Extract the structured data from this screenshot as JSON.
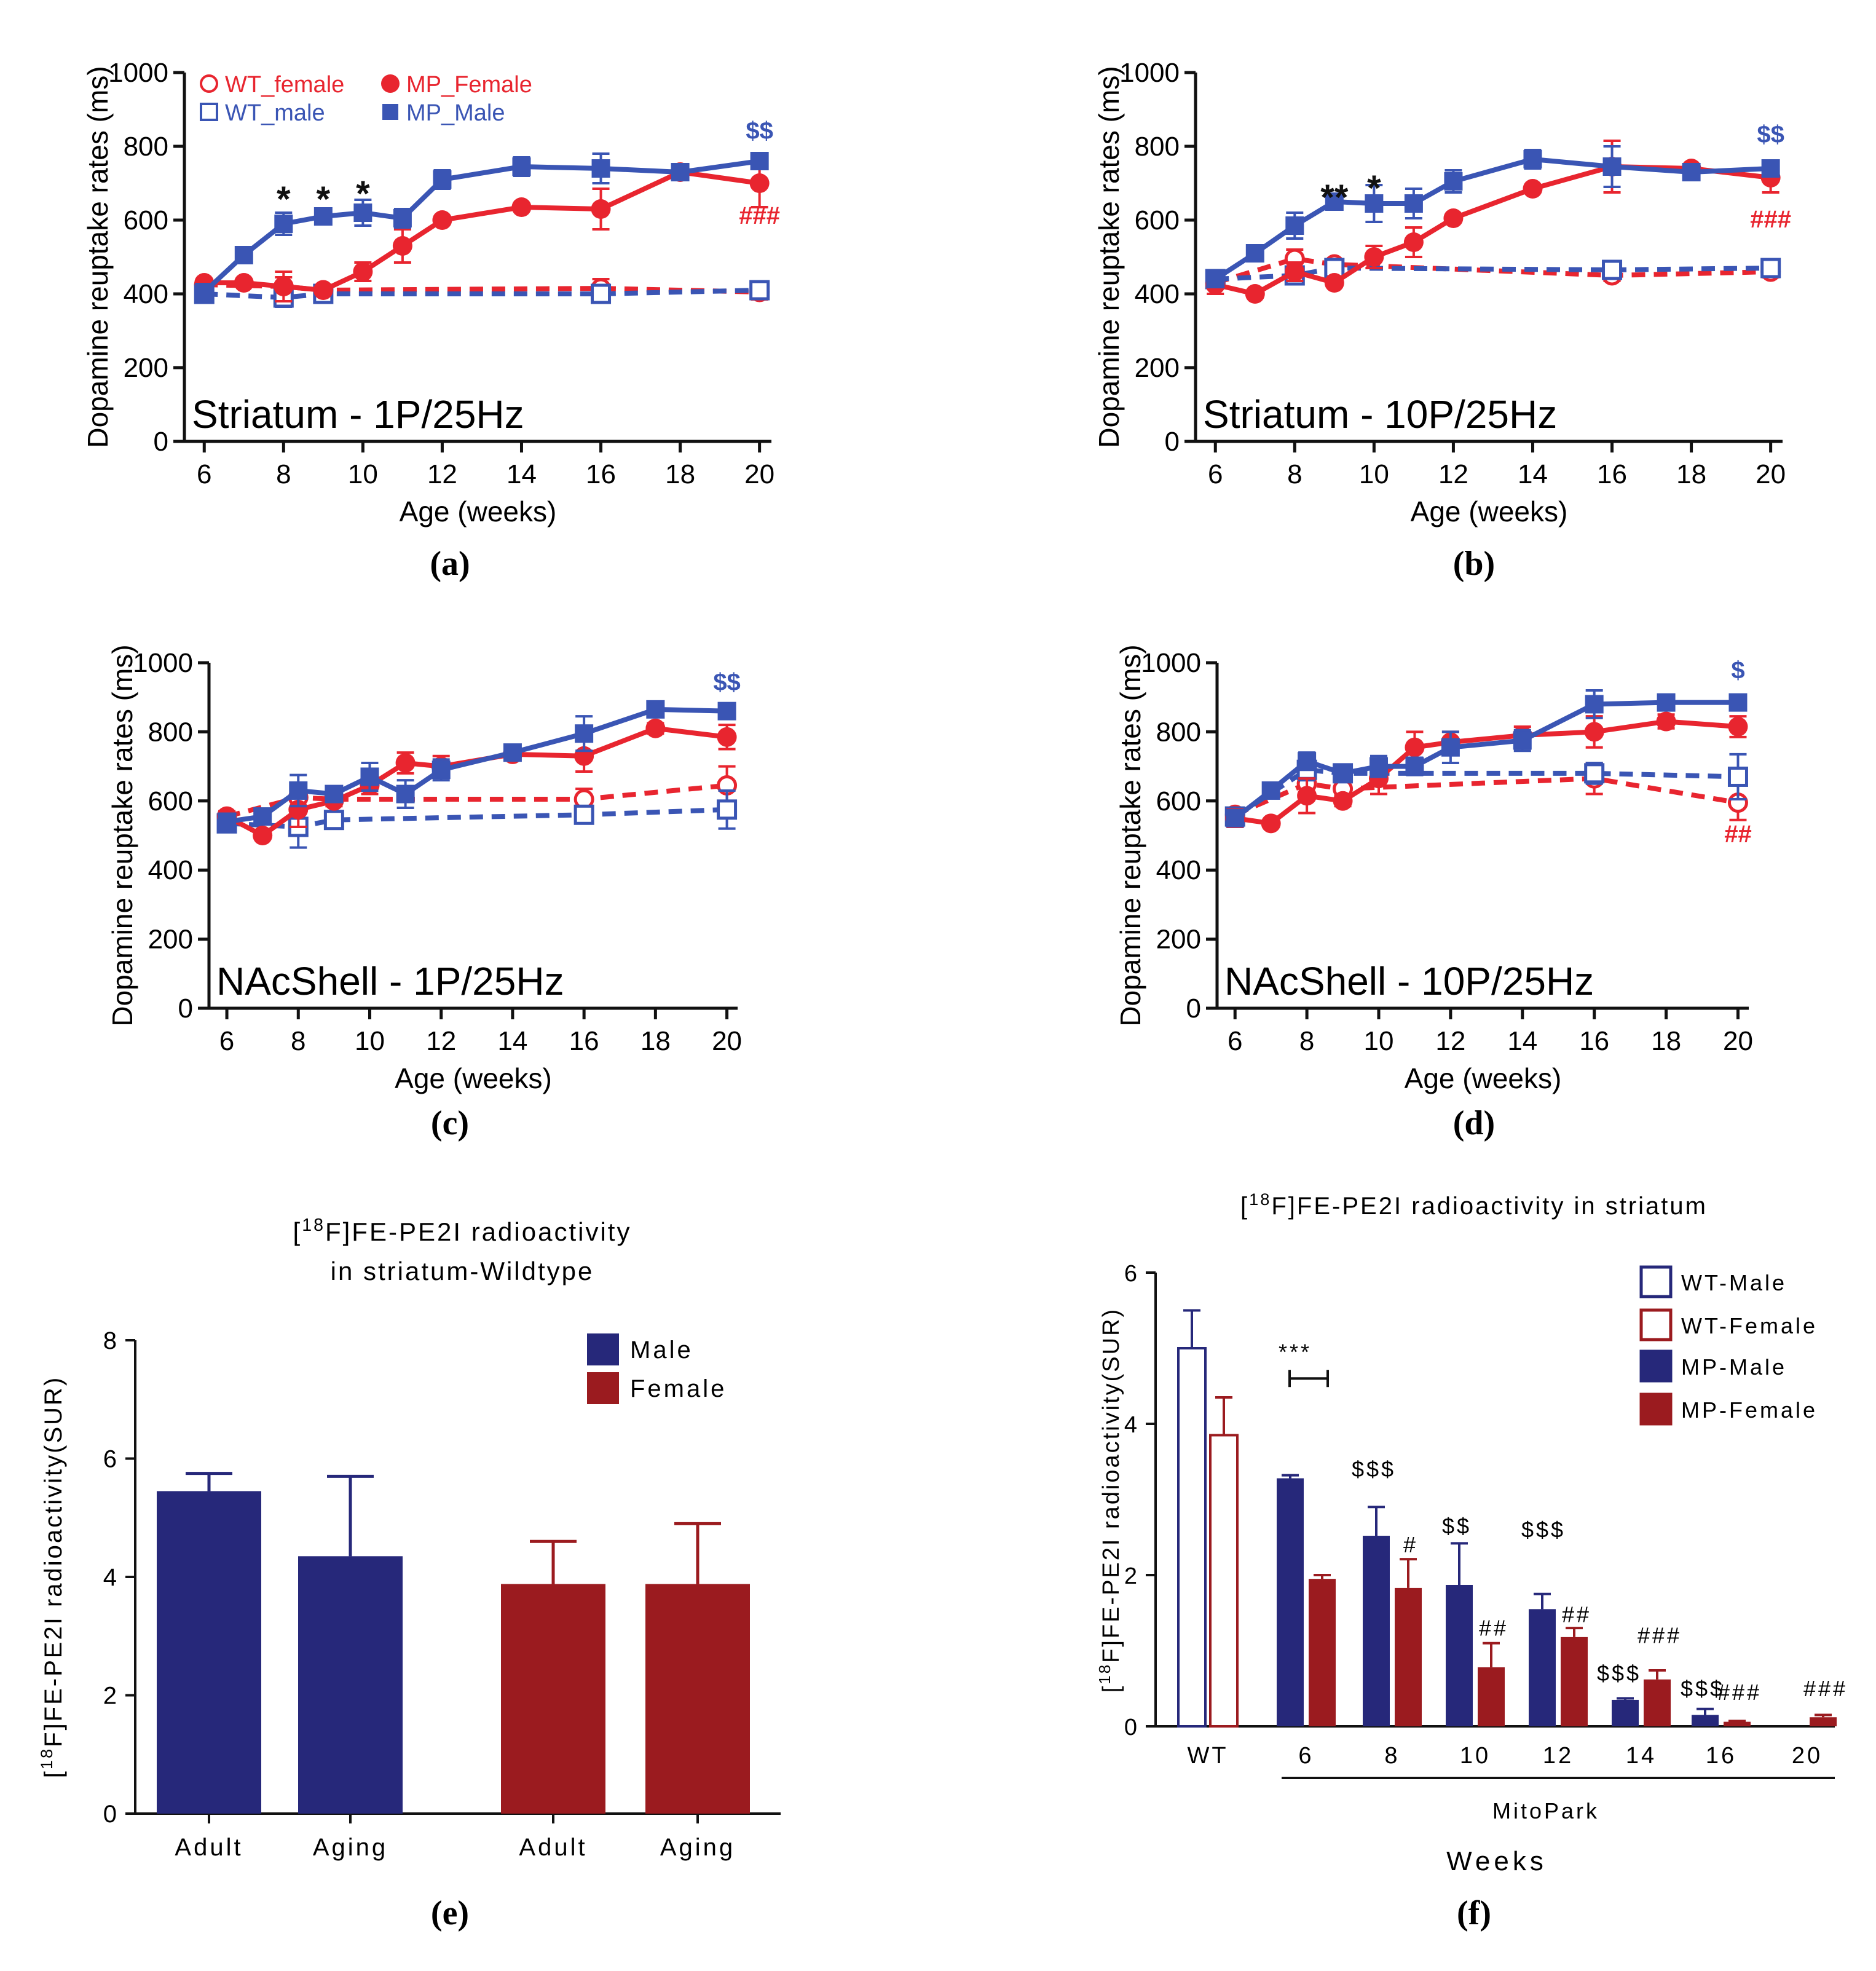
{
  "colors": {
    "mp_female": "#e8252f",
    "wt_female": "#e8252f",
    "mp_male": "#3a55b4",
    "wt_male": "#3a55b4",
    "bar_male": "#26287a",
    "bar_female": "#9b1b1f",
    "axis": "#111111"
  },
  "chart_data": [
    {
      "panel": "a",
      "type": "line",
      "caption": "(a)",
      "annotation": "Striatum - 1P/25Hz",
      "xlabel": "Age (weeks)",
      "ylabel": "Dopamine reuptake rates (ms)",
      "xlim": [
        5.5,
        20.3
      ],
      "ylim": [
        0,
        1000
      ],
      "xticks": [
        6,
        8,
        10,
        12,
        14,
        16,
        18,
        20
      ],
      "yticks": [
        0,
        200,
        400,
        600,
        800,
        1000
      ],
      "legend": [
        "WT_female",
        "MP_Female",
        "WT_male",
        "MP_Male"
      ],
      "series": [
        {
          "name": "WT_female",
          "key": "wt_female",
          "style": "dashed",
          "marker": "open-circle",
          "x": [
            6,
            8,
            9,
            16,
            20
          ],
          "y": [
            425,
            420,
            410,
            415,
            405
          ],
          "err": [
            15,
            25,
            10,
            25,
            20
          ]
        },
        {
          "name": "WT_male",
          "key": "wt_male",
          "style": "dashed",
          "marker": "open-square",
          "x": [
            6,
            8,
            9,
            16,
            20
          ],
          "y": [
            400,
            390,
            400,
            400,
            410
          ],
          "err": [
            15,
            25,
            10,
            20,
            20
          ]
        },
        {
          "name": "MP_Female",
          "key": "mp_female",
          "style": "solid",
          "marker": "filled-circle",
          "x": [
            6,
            7,
            8,
            9,
            10,
            11,
            12,
            14,
            16,
            18,
            20
          ],
          "y": [
            430,
            430,
            420,
            410,
            460,
            530,
            600,
            635,
            630,
            730,
            700
          ],
          "err": [
            10,
            10,
            40,
            10,
            25,
            45,
            10,
            10,
            55,
            10,
            65
          ]
        },
        {
          "name": "MP_Male",
          "key": "mp_male",
          "style": "solid",
          "marker": "filled-square",
          "x": [
            6,
            7,
            8,
            9,
            10,
            11,
            12,
            14,
            16,
            18,
            20
          ],
          "y": [
            405,
            505,
            590,
            610,
            620,
            605,
            710,
            745,
            740,
            730,
            760
          ],
          "err": [
            10,
            15,
            30,
            10,
            35,
            25,
            25,
            25,
            40,
            10,
            20
          ]
        }
      ],
      "marks": [
        {
          "text": "*",
          "x": 8,
          "y": 660,
          "color": "axis"
        },
        {
          "text": "*",
          "x": 9,
          "y": 660,
          "color": "axis"
        },
        {
          "text": "*",
          "x": 10,
          "y": 675,
          "color": "axis"
        },
        {
          "text": "$$",
          "x": 20,
          "y": 820,
          "color": "mp_male"
        },
        {
          "text": "###",
          "x": 20,
          "y": 590,
          "color": "mp_female"
        }
      ]
    },
    {
      "panel": "b",
      "type": "line",
      "caption": "(b)",
      "annotation": "Striatum - 10P/25Hz",
      "xlabel": "Age (weeks)",
      "ylabel": "Dopamine reuptake rates (ms)",
      "xlim": [
        5.5,
        20.3
      ],
      "ylim": [
        0,
        1000
      ],
      "xticks": [
        6,
        8,
        10,
        12,
        14,
        16,
        18,
        20
      ],
      "yticks": [
        0,
        200,
        400,
        600,
        800,
        1000
      ],
      "series": [
        {
          "name": "WT_female",
          "key": "wt_female",
          "style": "dashed",
          "marker": "open-circle",
          "x": [
            6,
            8,
            9,
            16,
            20
          ],
          "y": [
            430,
            495,
            480,
            450,
            460
          ],
          "err": [
            15,
            25,
            10,
            15,
            15
          ]
        },
        {
          "name": "WT_male",
          "key": "wt_male",
          "style": "dashed",
          "marker": "open-square",
          "x": [
            6,
            8,
            9,
            16,
            20
          ],
          "y": [
            440,
            450,
            470,
            465,
            470
          ],
          "err": [
            15,
            20,
            10,
            15,
            15
          ]
        },
        {
          "name": "MP_Female",
          "key": "mp_female",
          "style": "solid",
          "marker": "filled-circle",
          "x": [
            6,
            7,
            8,
            9,
            10,
            11,
            12,
            14,
            16,
            18,
            20
          ],
          "y": [
            425,
            400,
            460,
            430,
            500,
            540,
            605,
            685,
            745,
            740,
            715
          ],
          "err": [
            25,
            10,
            25,
            10,
            30,
            40,
            10,
            10,
            70,
            10,
            40
          ]
        },
        {
          "name": "MP_Male",
          "key": "mp_male",
          "style": "solid",
          "marker": "filled-square",
          "x": [
            6,
            7,
            8,
            9,
            10,
            11,
            12,
            14,
            16,
            18,
            20
          ],
          "y": [
            440,
            510,
            585,
            650,
            645,
            645,
            705,
            765,
            745,
            730,
            740
          ],
          "err": [
            10,
            20,
            35,
            10,
            50,
            40,
            30,
            25,
            55,
            10,
            20
          ]
        }
      ],
      "marks": [
        {
          "text": "**",
          "x": 9,
          "y": 665,
          "color": "axis"
        },
        {
          "text": "*",
          "x": 10,
          "y": 690,
          "color": "axis"
        },
        {
          "text": "$$",
          "x": 20,
          "y": 810,
          "color": "mp_male"
        },
        {
          "text": "###",
          "x": 20,
          "y": 580,
          "color": "mp_female"
        }
      ]
    },
    {
      "panel": "c",
      "type": "line",
      "caption": "(c)",
      "annotation": "NAcShell - 1P/25Hz",
      "xlabel": "Age (weeks)",
      "ylabel": "Dopamine reuptake rates (ms)",
      "xlim": [
        5.5,
        20.3
      ],
      "ylim": [
        0,
        1000
      ],
      "xticks": [
        6,
        8,
        10,
        12,
        14,
        16,
        18,
        20
      ],
      "yticks": [
        0,
        200,
        400,
        600,
        800,
        1000
      ],
      "series": [
        {
          "name": "WT_female",
          "key": "wt_female",
          "style": "dashed",
          "marker": "open-circle",
          "x": [
            6,
            8,
            9,
            16,
            20
          ],
          "y": [
            555,
            610,
            605,
            605,
            645
          ],
          "err": [
            15,
            35,
            15,
            30,
            55
          ]
        },
        {
          "name": "WT_male",
          "key": "wt_male",
          "style": "dashed",
          "marker": "open-square",
          "x": [
            6,
            8,
            9,
            16,
            20
          ],
          "y": [
            535,
            525,
            545,
            560,
            575
          ],
          "err": [
            15,
            60,
            15,
            20,
            55
          ]
        },
        {
          "name": "MP_Female",
          "key": "mp_female",
          "style": "solid",
          "marker": "filled-circle",
          "x": [
            6,
            7,
            8,
            9,
            10,
            11,
            12,
            14,
            16,
            18,
            20
          ],
          "y": [
            555,
            500,
            575,
            600,
            645,
            710,
            700,
            735,
            730,
            810,
            785
          ],
          "err": [
            15,
            10,
            50,
            15,
            25,
            30,
            30,
            15,
            45,
            15,
            35
          ]
        },
        {
          "name": "MP_Male",
          "key": "mp_male",
          "style": "solid",
          "marker": "filled-square",
          "x": [
            6,
            7,
            8,
            9,
            10,
            11,
            12,
            14,
            16,
            18,
            20
          ],
          "y": [
            540,
            555,
            630,
            620,
            670,
            620,
            690,
            740,
            795,
            865,
            860
          ],
          "err": [
            10,
            10,
            45,
            15,
            40,
            40,
            30,
            20,
            50,
            10,
            15
          ]
        }
      ],
      "marks": [
        {
          "text": "$$",
          "x": 20,
          "y": 920,
          "color": "mp_male"
        }
      ]
    },
    {
      "panel": "d",
      "type": "line",
      "caption": "(d)",
      "annotation": "NAcShell - 10P/25Hz",
      "xlabel": "Age (weeks)",
      "ylabel": "Dopamine reuptake rates (ms)",
      "xlim": [
        5.5,
        20.3
      ],
      "ylim": [
        0,
        1000
      ],
      "xticks": [
        6,
        8,
        10,
        12,
        14,
        16,
        18,
        20
      ],
      "yticks": [
        0,
        200,
        400,
        600,
        800,
        1000
      ],
      "series": [
        {
          "name": "WT_female",
          "key": "wt_female",
          "style": "dashed",
          "marker": "open-circle",
          "x": [
            6,
            8,
            9,
            16,
            20
          ],
          "y": [
            560,
            650,
            635,
            665,
            595
          ],
          "err": [
            15,
            40,
            20,
            45,
            50
          ]
        },
        {
          "name": "WT_male",
          "key": "wt_male",
          "style": "dashed",
          "marker": "open-square",
          "x": [
            6,
            8,
            9,
            16,
            20
          ],
          "y": [
            555,
            690,
            680,
            680,
            670
          ],
          "err": [
            15,
            30,
            25,
            30,
            65
          ]
        },
        {
          "name": "MP_Female",
          "key": "mp_female",
          "style": "solid",
          "marker": "filled-circle",
          "x": [
            6,
            7,
            8,
            9,
            10,
            11,
            12,
            14,
            16,
            18,
            20
          ],
          "y": [
            550,
            535,
            615,
            600,
            665,
            755,
            770,
            790,
            800,
            830,
            815
          ],
          "err": [
            25,
            10,
            50,
            15,
            45,
            45,
            30,
            25,
            45,
            20,
            30
          ]
        },
        {
          "name": "MP_Male",
          "key": "mp_male",
          "style": "solid",
          "marker": "filled-square",
          "x": [
            6,
            7,
            8,
            9,
            10,
            11,
            12,
            14,
            16,
            18,
            20
          ],
          "y": [
            550,
            630,
            715,
            680,
            700,
            700,
            755,
            775,
            880,
            885,
            885
          ],
          "err": [
            15,
            10,
            25,
            20,
            30,
            25,
            45,
            30,
            40,
            20,
            20
          ]
        }
      ],
      "marks": [
        {
          "text": "$",
          "x": 20,
          "y": 955,
          "color": "mp_male"
        },
        {
          "text": "##",
          "x": 20,
          "y": 480,
          "color": "mp_female"
        }
      ]
    },
    {
      "panel": "e",
      "type": "bar",
      "caption": "(e)",
      "title": [
        "[18F]FE-PE2I radioactivity",
        "in striatum-Wildtype"
      ],
      "ylabel": "[18F]FE-PE2I radioactivity(SUR)",
      "ylim": [
        0,
        8
      ],
      "yticks": [
        0,
        2,
        4,
        6,
        8
      ],
      "legend": [
        "Male",
        "Female"
      ],
      "bars": [
        {
          "label": "Adult",
          "group": "Male",
          "value": 5.45,
          "err": 0.3
        },
        {
          "label": "Aging",
          "group": "Male",
          "value": 4.35,
          "err": 1.35
        },
        {
          "label": "Adult",
          "group": "Female",
          "value": 3.88,
          "err": 0.72
        },
        {
          "label": "Aging",
          "group": "Female",
          "value": 3.88,
          "err": 1.02
        }
      ]
    },
    {
      "panel": "f",
      "type": "bar",
      "caption": "(f)",
      "title": "[18F]FE-PE2I radioactivity in striatum",
      "ylabel": "[18F]FE-PE2I radioactivity(SUR)",
      "xlabel": "Weeks",
      "group_label": "MitoPark",
      "ylim": [
        0,
        6
      ],
      "yticks": [
        0,
        2,
        4,
        6
      ],
      "legend": [
        "WT-Male",
        "WT-Female",
        "MP-Male",
        "MP-Female"
      ],
      "categories": [
        "WT",
        "6",
        "8",
        "10",
        "12",
        "14",
        "16",
        "20"
      ],
      "bars": [
        {
          "cat": "WT",
          "group": "WT-Male",
          "value": 5.0,
          "err": 0.5
        },
        {
          "cat": "WT",
          "group": "WT-Female",
          "value": 3.85,
          "err": 0.5
        },
        {
          "cat": "6",
          "group": "MP-Male",
          "value": 3.28,
          "err": 0.04
        },
        {
          "cat": "6",
          "group": "MP-Female",
          "value": 1.95,
          "err": 0.05
        },
        {
          "cat": "8",
          "group": "MP-Male",
          "value": 2.52,
          "err": 0.38
        },
        {
          "cat": "8",
          "group": "MP-Female",
          "value": 1.83,
          "err": 0.38
        },
        {
          "cat": "10",
          "group": "MP-Male",
          "value": 1.87,
          "err": 0.55
        },
        {
          "cat": "10",
          "group": "MP-Female",
          "value": 0.78,
          "err": 0.32
        },
        {
          "cat": "12",
          "group": "MP-Male",
          "value": 1.55,
          "err": 0.2
        },
        {
          "cat": "12",
          "group": "MP-Female",
          "value": 1.18,
          "err": 0.12
        },
        {
          "cat": "14",
          "group": "MP-Male",
          "value": 0.35,
          "err": 0.02
        },
        {
          "cat": "14",
          "group": "MP-Female",
          "value": 0.62,
          "err": 0.12
        },
        {
          "cat": "16",
          "group": "MP-Male",
          "value": 0.15,
          "err": 0.08
        },
        {
          "cat": "16",
          "group": "MP-Female",
          "value": 0.06,
          "err": 0.01
        },
        {
          "cat": "20",
          "group": "MP-Female",
          "value": 0.12,
          "err": 0.03
        }
      ],
      "marks": [
        {
          "text": "***",
          "cat": "6",
          "slot": -0.3,
          "y": 4.85
        },
        {
          "text": "$$$",
          "cat": "8",
          "slot": -0.5,
          "y": 3.3
        },
        {
          "text": "#",
          "cat": "8",
          "slot": 0.5,
          "y": 2.3
        },
        {
          "text": "$$",
          "cat": "10",
          "slot": -0.5,
          "y": 2.55
        },
        {
          "text": "##",
          "cat": "10",
          "slot": 0.5,
          "y": 1.2
        },
        {
          "text": "$$$",
          "cat": "12",
          "slot": -0.4,
          "y": 2.5
        },
        {
          "text": "##",
          "cat": "12",
          "slot": 0.5,
          "y": 1.38
        },
        {
          "text": "###",
          "cat": "14",
          "slot": 0.5,
          "y": 1.1
        },
        {
          "text": "$$$",
          "cat": "14",
          "slot": -0.6,
          "y": 0.6
        },
        {
          "text": "$$$",
          "cat": "16",
          "slot": -0.5,
          "y": 0.4
        },
        {
          "text": "###",
          "cat": "16",
          "slot": 0.5,
          "y": 0.35
        },
        {
          "text": "###",
          "cat": "20",
          "slot": 0.5,
          "y": 0.4
        }
      ]
    }
  ]
}
